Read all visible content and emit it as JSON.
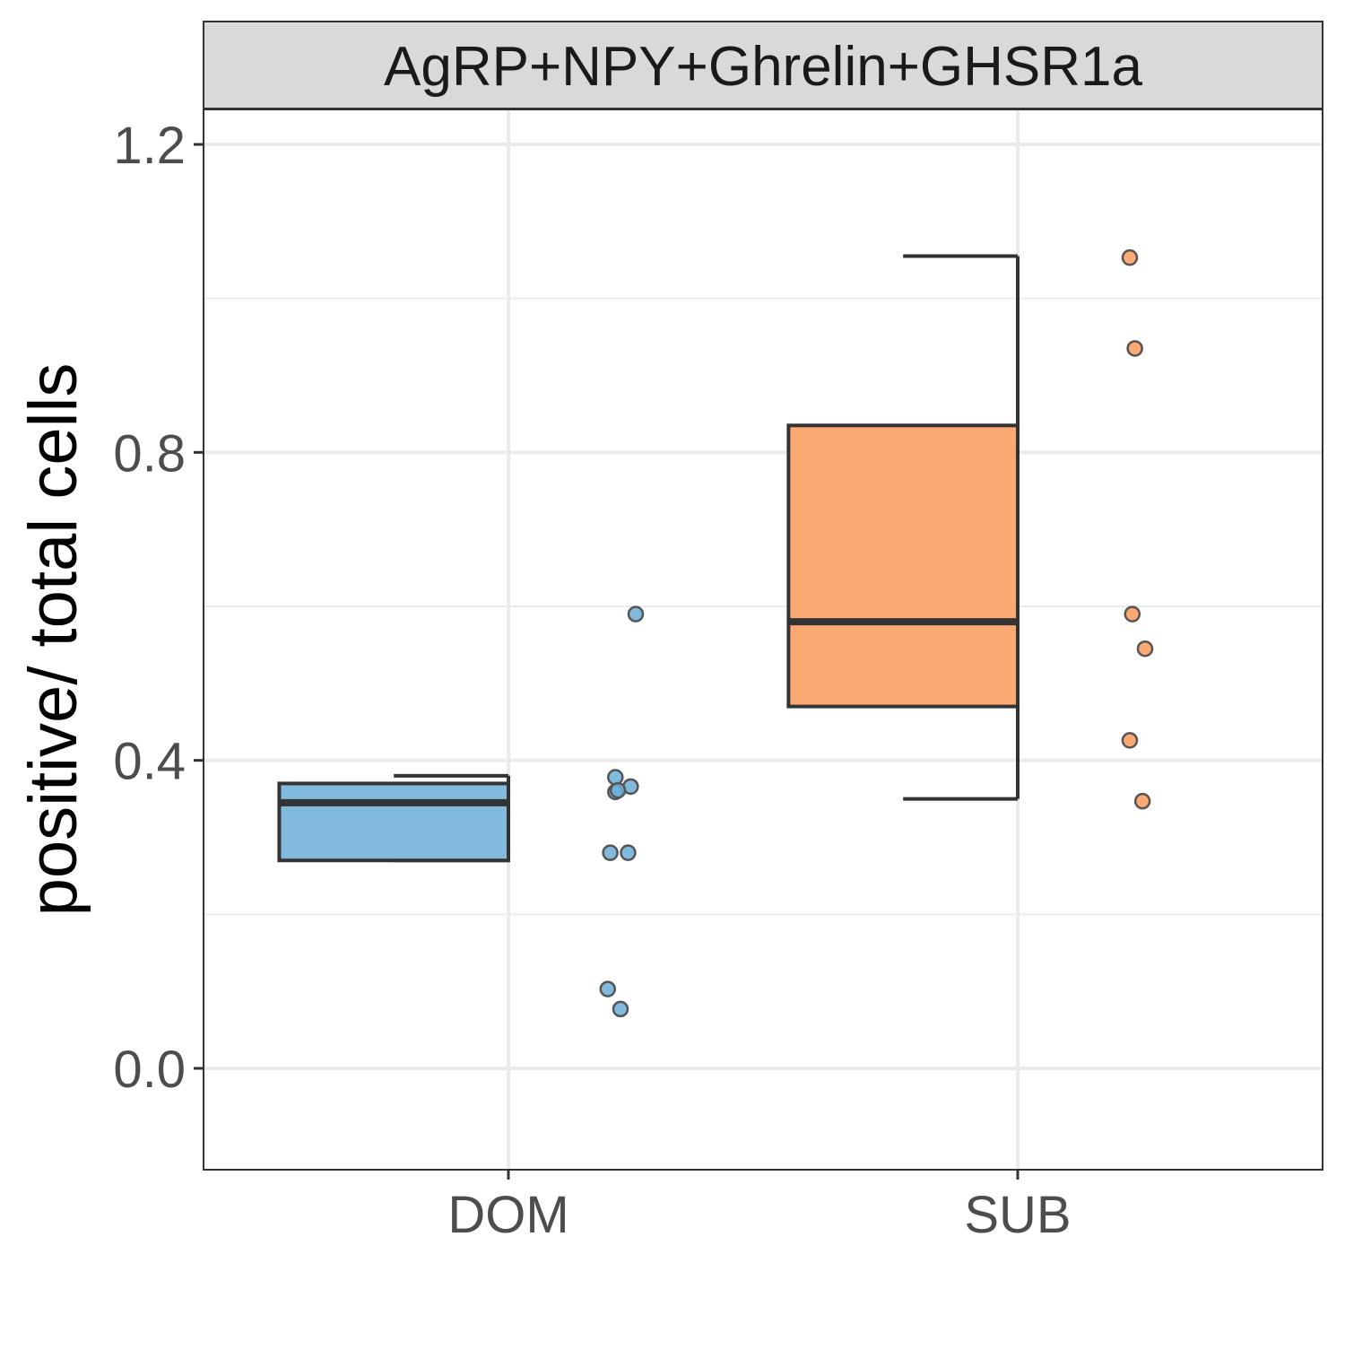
{
  "chart_data": {
    "type": "boxplot",
    "facet_label": "AgRP+NPY+Ghrelin+GHSR1a",
    "ylabel": "positive/ total cells",
    "xlabel": "",
    "ylim": [
      -0.13,
      1.25
    ],
    "yticks": [
      "0.0",
      "0.4",
      "0.8",
      "1.2"
    ],
    "ytick_values": [
      0.0,
      0.4,
      0.8,
      1.2
    ],
    "minor_grid_values": [
      0.2,
      0.6,
      1.0
    ],
    "categories": [
      "DOM",
      "SUB"
    ],
    "grid": true,
    "legend": "none",
    "series": [
      {
        "category": "DOM",
        "color": "#6baed6",
        "box": {
          "whisker_low": 0.27,
          "q1": 0.27,
          "median": 0.345,
          "q3": 0.37,
          "whisker_high": 0.38
        },
        "points": [
          0.59,
          0.378,
          0.366,
          0.359,
          0.361,
          0.28,
          0.28,
          0.103,
          0.077
        ],
        "point_offsets": [
          0.25,
          0.21,
          0.24,
          0.21,
          0.215,
          0.2,
          0.235,
          0.195,
          0.22
        ]
      },
      {
        "category": "SUB",
        "color": "#fd9a5a",
        "box": {
          "whisker_low": 0.35,
          "q1": 0.47,
          "median": 0.58,
          "q3": 0.835,
          "whisker_high": 1.055
        },
        "points": [
          1.053,
          0.935,
          0.59,
          0.545,
          0.426,
          0.347
        ],
        "point_offsets": [
          0.22,
          0.23,
          0.225,
          0.25,
          0.22,
          0.245
        ]
      }
    ]
  }
}
